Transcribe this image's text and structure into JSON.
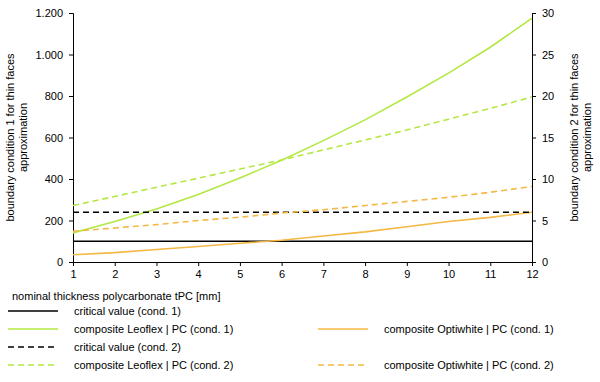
{
  "chart_data": {
    "type": "line",
    "xlabel": "nominal thickness polycarbonate tPC [mm]",
    "ylabel": [
      "boundary condition 1 for thin faces",
      "approximation"
    ],
    "y2label": [
      "boundary condition 2 for thin faces",
      "approximation"
    ],
    "x": [
      1,
      2,
      3,
      4,
      5,
      6,
      7,
      8,
      9,
      10,
      11,
      12
    ],
    "xlim": [
      1,
      12
    ],
    "xticks": [
      1,
      2,
      3,
      4,
      5,
      6,
      7,
      8,
      9,
      10,
      11,
      12
    ],
    "ylim": [
      0,
      1200
    ],
    "yticks": [
      0,
      200,
      400,
      600,
      800,
      {
        "value": 1000,
        "label": "1.000"
      },
      {
        "value": 1200,
        "label": "1.200"
      }
    ],
    "y2lim": [
      0,
      30
    ],
    "y2ticks": [
      0,
      5,
      10,
      15,
      20,
      25,
      30
    ],
    "grid": false,
    "legend": "bottom",
    "series": [
      {
        "name": "critical value (cond. 1)",
        "color": "#000000",
        "line_style": "solid",
        "values": [
          100,
          100,
          100,
          100,
          100,
          100,
          100,
          100,
          100,
          100,
          100,
          100
        ]
      },
      {
        "name": "composite Leoflex | PC (cond. 1)",
        "color": "#b3e842",
        "line_style": "solid",
        "values": [
          140,
          195,
          255,
          325,
          405,
          490,
          585,
          685,
          795,
          910,
          1035,
          1175
        ]
      },
      {
        "name": "composite Optiwhite | PC (cond. 1)",
        "color": "#f4b844",
        "line_style": "solid",
        "values": [
          35,
          45,
          60,
          75,
          90,
          105,
          125,
          145,
          170,
          195,
          215,
          240
        ]
      },
      {
        "name": "critical value (cond. 2)",
        "color": "#000000",
        "line_style": "dashed",
        "axis": "y2",
        "values": [
          6,
          6,
          6,
          6,
          6,
          6,
          6,
          6,
          6,
          6,
          6,
          6
        ]
      },
      {
        "name": "composite Leoflex | PC (cond. 2)",
        "color": "#b3e842",
        "line_style": "dashed",
        "axis": "y2",
        "values": [
          6.8,
          7.9,
          9.0,
          10.1,
          11.2,
          12.3,
          13.5,
          14.7,
          15.9,
          17.2,
          18.5,
          19.9
        ]
      },
      {
        "name": "composite Optiwhite | PC (cond. 2)",
        "color": "#f4b844",
        "line_style": "dashed",
        "axis": "y2",
        "values": [
          3.7,
          4.1,
          4.5,
          5.0,
          5.4,
          5.9,
          6.3,
          6.8,
          7.3,
          7.8,
          8.4,
          9.1
        ]
      }
    ]
  }
}
